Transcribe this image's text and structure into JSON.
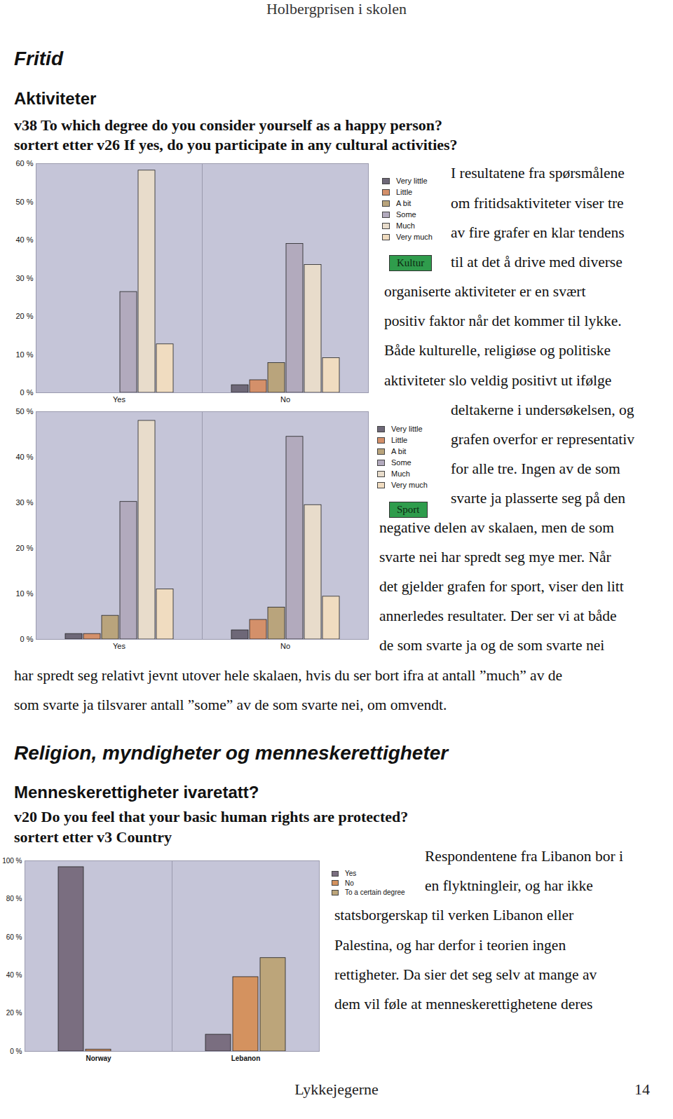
{
  "header": "Holbergprisen i skolen",
  "footer": {
    "title": "Lykkejegerne",
    "page": "14"
  },
  "sections": [
    {
      "heading": "Fritid",
      "subheading": "Aktiviteter",
      "question": [
        "v38 To which degree do you consider yourself as a happy person?",
        "sortert etter v26 If yes, do you participate in any cultural activities?"
      ],
      "paragraph": [
        "I resultatene fra spørsmålene",
        "om fritidsaktiviteter viser tre",
        "av fire grafer en klar tendens",
        "til at det å drive med diverse",
        "organiserte aktiviteter er en svært",
        "positiv faktor når det kommer til lykke.",
        "Både kulturelle, religiøse og politiske",
        "aktiviteter slo veldig positivt ut ifølge",
        "deltakerne i undersøkelsen, og",
        "grafen overfor er representativ",
        "for alle tre. Ingen av de som",
        "svarte ja plasserte seg på den",
        "negative delen av skalaen, men de som",
        "svarte nei har spredt seg mye mer. Når",
        "det gjelder grafen for sport, viser den litt",
        "annerledes resultater. Der ser vi at både",
        "de som svarte ja og de som svarte nei",
        "har spredt seg relativt jevnt utover hele skalaen, hvis du ser bort ifra at antall ”much” av de",
        "som svarte ja tilsvarer antall ”some” av de som svarte nei, om omvendt."
      ]
    },
    {
      "heading": "Religion, myndigheter og menneskerettigheter",
      "subheading": "Menneskerettigheter ivaretatt?",
      "question": [
        "v20 Do you feel that your basic human rights are protected?",
        "sortert etter v3 Country"
      ],
      "paragraph": [
        "Respondentene fra Libanon bor i",
        "en flyktningleir, og har ikke",
        "statsborgerskap til verken Libanon eller",
        "Palestina, og har derfor i teorien ingen",
        "rettigheter. Da sier det seg selv at mange av",
        "dem vil føle at menneskerettighetene deres"
      ]
    }
  ],
  "chart_data": [
    {
      "type": "bar",
      "annotations": [
        "Kultur"
      ],
      "categories": [
        "Yes",
        "No"
      ],
      "series": [
        {
          "name": "Very little",
          "color": "#6e6878",
          "values": [
            0,
            2
          ]
        },
        {
          "name": "Little",
          "color": "#d4906a",
          "values": [
            0,
            3.3
          ]
        },
        {
          "name": "A bit",
          "color": "#b9a47c",
          "values": [
            0,
            7.8
          ]
        },
        {
          "name": "Some",
          "color": "#b2aabd",
          "values": [
            26.4,
            39
          ]
        },
        {
          "name": "Much",
          "color": "#e8dccb",
          "values": [
            58.2,
            33.5
          ]
        },
        {
          "name": "Very much",
          "color": "#f0dcc0",
          "values": [
            12.7,
            9.1
          ]
        }
      ],
      "ylim": [
        0,
        60
      ],
      "yticks": [
        {
          "value": 0,
          "label": "0 %"
        },
        {
          "value": 10,
          "label": "10 %"
        },
        {
          "value": 20,
          "label": "20 %"
        },
        {
          "value": 30,
          "label": "30 %"
        },
        {
          "value": 40,
          "label": "40 %"
        },
        {
          "value": 50,
          "label": "50 %"
        },
        {
          "value": 60,
          "label": "60 %"
        }
      ],
      "grid": false,
      "legend": "right"
    },
    {
      "type": "bar",
      "annotations": [
        "Sport"
      ],
      "categories": [
        "Yes",
        "No"
      ],
      "series": [
        {
          "name": "Very little",
          "color": "#6e6878",
          "values": [
            1.2,
            2
          ]
        },
        {
          "name": "Little",
          "color": "#d4906a",
          "values": [
            1.2,
            4.3
          ]
        },
        {
          "name": "A bit",
          "color": "#b9a47c",
          "values": [
            5.2,
            7
          ]
        },
        {
          "name": "Some",
          "color": "#b2aabd",
          "values": [
            30.2,
            44.5
          ]
        },
        {
          "name": "Much",
          "color": "#e8dccb",
          "values": [
            48,
            29.5
          ]
        },
        {
          "name": "Very much",
          "color": "#f0dcc0",
          "values": [
            11,
            9.4
          ]
        }
      ],
      "ylim": [
        0,
        50
      ],
      "yticks": [
        {
          "value": 0,
          "label": "0 %"
        },
        {
          "value": 10,
          "label": "10 %"
        },
        {
          "value": 20,
          "label": "20 %"
        },
        {
          "value": 30,
          "label": "30 %"
        },
        {
          "value": 40,
          "label": "40 %"
        },
        {
          "value": 50,
          "label": "50 %"
        }
      ],
      "grid": false,
      "legend": "right"
    },
    {
      "type": "bar",
      "categories": [
        "Norway",
        "Lebanon"
      ],
      "series": [
        {
          "name": "Yes",
          "color": "#7a6e80",
          "values": [
            96.7,
            8.8
          ]
        },
        {
          "name": "No",
          "color": "#d4925f",
          "values": [
            1,
            39
          ]
        },
        {
          "name": "To a certain degree",
          "color": "#bca57a",
          "values": [
            0,
            49
          ]
        }
      ],
      "ylim": [
        0,
        100
      ],
      "yticks": [
        {
          "value": 0,
          "label": "0 %"
        },
        {
          "value": 20,
          "label": "20 %"
        },
        {
          "value": 40,
          "label": "40 %"
        },
        {
          "value": 60,
          "label": "60 %"
        },
        {
          "value": 80,
          "label": "80 %"
        },
        {
          "value": 100,
          "label": "100 %"
        }
      ],
      "grid": false,
      "legend": "right"
    }
  ]
}
